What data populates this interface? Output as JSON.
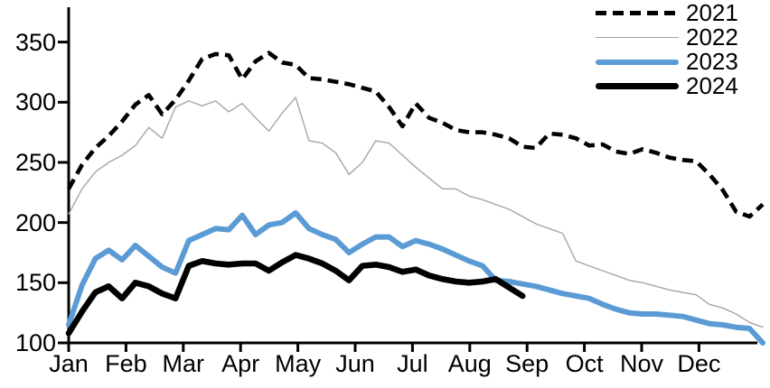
{
  "figure": {
    "background": "#FFFFFF"
  },
  "legend": {
    "position": "top-right"
  },
  "chart_data": {
    "type": "line",
    "title": "",
    "xlabel": "",
    "ylabel": "",
    "sampling": "weekly",
    "grid": false,
    "x_axis": {
      "months": [
        "Jan",
        "Feb",
        "Mar",
        "Apr",
        "May",
        "Jun",
        "Jul",
        "Aug",
        "Sep",
        "Oct",
        "Nov",
        "Dec"
      ]
    },
    "y_axis": {
      "ticks_top_to_bottom": [
        350,
        300,
        250,
        200,
        150,
        100
      ],
      "min": 100,
      "max": 350
    },
    "series": [
      {
        "name": "2021",
        "color": "#000000",
        "style": "dashed",
        "stroke_width": 4.6,
        "values": [
          228,
          248,
          262,
          272,
          284,
          298,
          306,
          290,
          302,
          318,
          336,
          340,
          339,
          319,
          334,
          341,
          333,
          331,
          320,
          319,
          317,
          315,
          312,
          309,
          296,
          280,
          299,
          287,
          283,
          277,
          275,
          275,
          273,
          270,
          263,
          262,
          274,
          273,
          270,
          264,
          265,
          259,
          257,
          261,
          258,
          254,
          252,
          251,
          240,
          227,
          209,
          205,
          215
        ]
      },
      {
        "name": "2022",
        "color": "#A6A6A6",
        "style": "solid",
        "stroke_width": 1.4,
        "values": [
          207,
          228,
          242,
          250,
          256,
          264,
          279,
          270,
          296,
          301,
          297,
          301,
          292,
          299,
          287,
          276,
          291,
          304,
          268,
          266,
          258,
          240,
          250,
          268,
          266,
          256,
          246,
          237,
          228,
          228,
          222,
          219,
          215,
          211,
          205,
          199,
          195,
          191,
          168,
          164,
          160,
          156,
          152,
          150,
          147,
          144,
          142,
          140,
          132,
          129,
          124,
          117,
          113
        ]
      },
      {
        "name": "2023",
        "color": "#5B9BD5",
        "style": "solid",
        "stroke_width": 6,
        "values": [
          115,
          148,
          170,
          177,
          169,
          181,
          172,
          163,
          158,
          185,
          190,
          195,
          194,
          206,
          190,
          198,
          200,
          208,
          195,
          190,
          186,
          175,
          182,
          188,
          188,
          180,
          185,
          182,
          178,
          173,
          168,
          164,
          152,
          151,
          149,
          147,
          144,
          141,
          139,
          137,
          132,
          128,
          125,
          124,
          124,
          123,
          122,
          119,
          116,
          115,
          113,
          112,
          100
        ]
      },
      {
        "name": "2024",
        "color": "#000000",
        "style": "solid",
        "stroke_width": 6.6,
        "values": [
          108,
          126,
          142,
          147,
          137,
          150,
          147,
          141,
          137,
          164,
          168,
          166,
          165,
          166,
          166,
          160,
          167,
          173,
          170,
          166,
          160,
          152,
          164,
          165,
          163,
          159,
          161,
          156,
          153,
          151,
          150,
          151,
          153,
          146,
          139
        ]
      }
    ]
  }
}
